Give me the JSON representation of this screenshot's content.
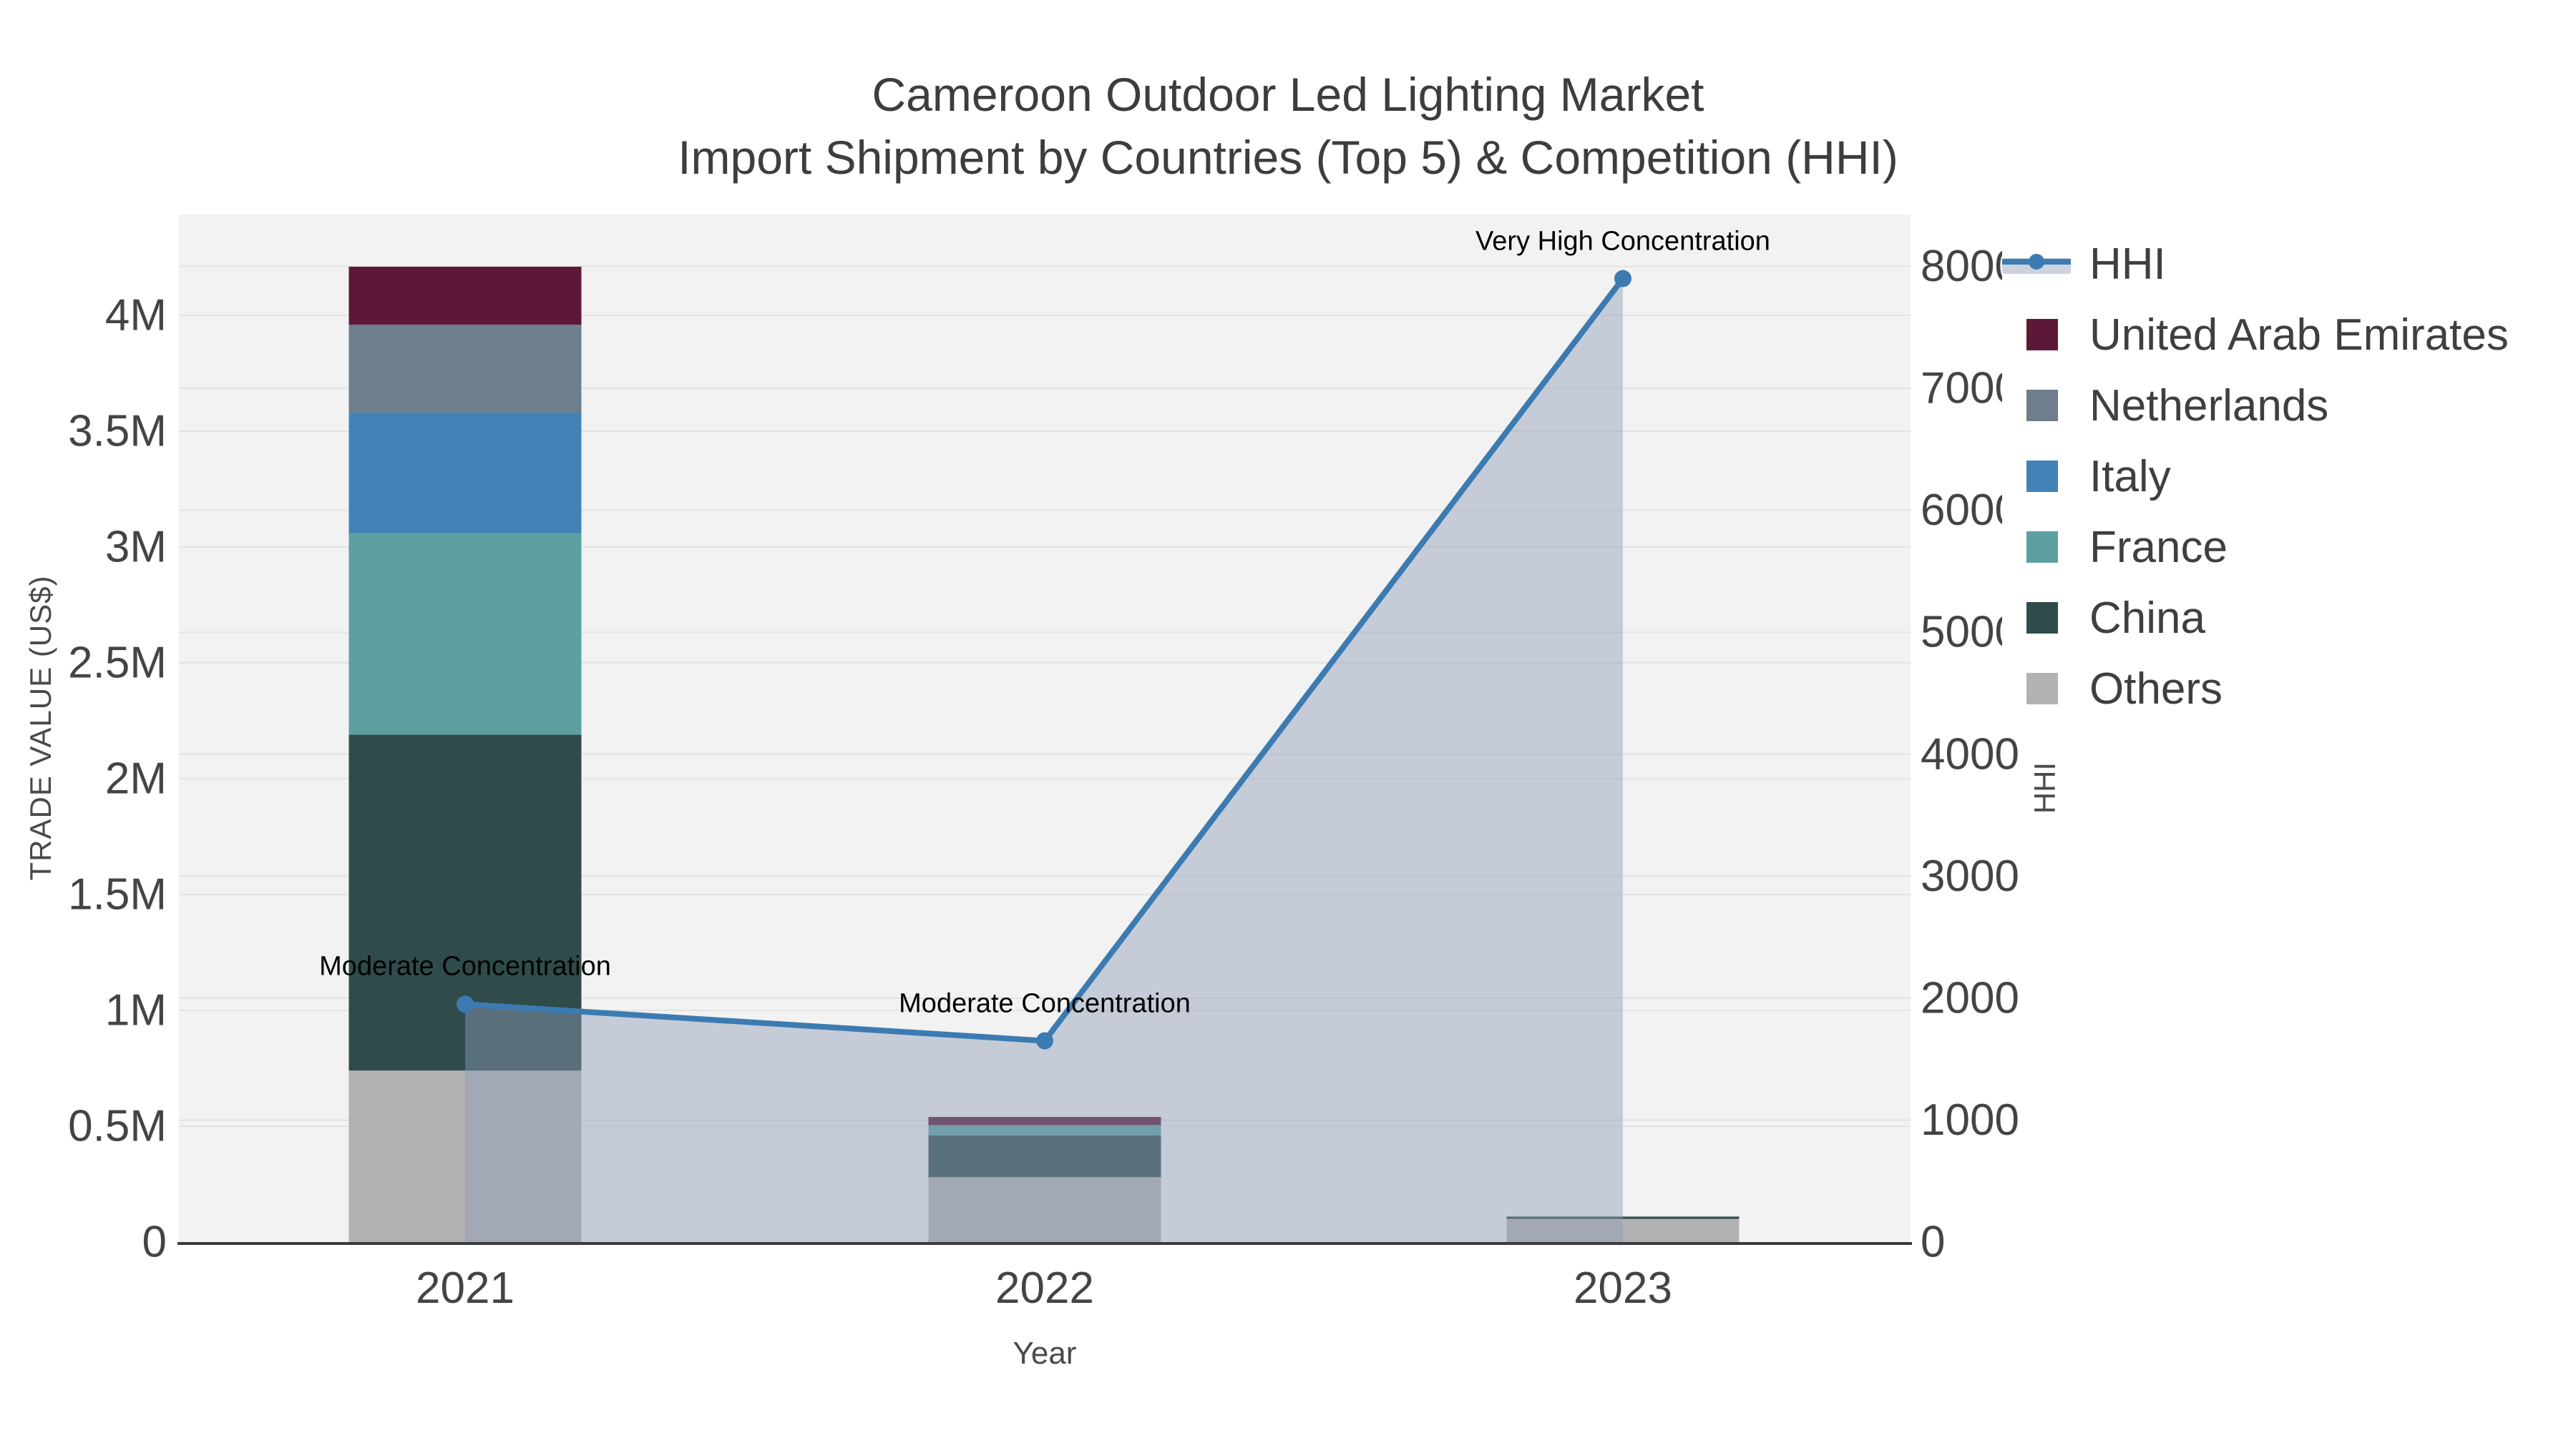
{
  "title": {
    "line1": "Cameroon Outdoor Led Lighting Market",
    "line2": "Import Shipment by Countries (Top 5) & Competition (HHI)"
  },
  "chart_data": {
    "type": "bar+line",
    "categories": [
      "2021",
      "2022",
      "2023"
    ],
    "bar_series": [
      {
        "name": "Others",
        "color": "#b2b2b2",
        "values": [
          740000,
          280000,
          100000
        ]
      },
      {
        "name": "China",
        "color": "#2f4c4b",
        "values": [
          1450000,
          180000,
          10000
        ]
      },
      {
        "name": "France",
        "color": "#5da0a2",
        "values": [
          870000,
          45000,
          0
        ]
      },
      {
        "name": "Italy",
        "color": "#4282b7",
        "values": [
          520000,
          0,
          0
        ]
      },
      {
        "name": "Netherlands",
        "color": "#6e7e8d",
        "values": [
          380000,
          0,
          0
        ]
      },
      {
        "name": "United Arab Emirates",
        "color": "#5d1737",
        "values": [
          250000,
          35000,
          0
        ]
      }
    ],
    "line_series": {
      "name": "HHI",
      "color": "#3c7bb1",
      "fill_color": "rgba(142,158,184,0.45)",
      "values": [
        1950,
        1650,
        7900
      ]
    },
    "left_axis": {
      "title": "TRADE VALUE (US$)",
      "ticks": [
        "0",
        "0.5M",
        "1M",
        "1.5M",
        "2M",
        "2.5M",
        "3M",
        "3.5M",
        "4M"
      ],
      "tick_step": 500000,
      "range": [
        0,
        4000000
      ]
    },
    "right_axis": {
      "title": "HHI",
      "ticks": [
        "0",
        "1000",
        "2000",
        "3000",
        "4000",
        "5000",
        "6000",
        "7000",
        "8000"
      ],
      "tick_step": 1000,
      "range": [
        0,
        8000
      ]
    },
    "x_axis": {
      "title": "Year",
      "labels": [
        "2021",
        "2022",
        "2023"
      ]
    },
    "annotations": [
      {
        "text": "Moderate Concentration",
        "x_index": 0
      },
      {
        "text": "Moderate Concentration",
        "x_index": 1
      },
      {
        "text": "Very High Concentration",
        "x_index": 2
      }
    ],
    "plot_bgcolor": "#f2f2f2",
    "gridline_color": "#e3e3e3",
    "axisline_color": "#3b3b3b",
    "legend_position": "right"
  },
  "legend": {
    "items": [
      {
        "label": "HHI",
        "type": "line",
        "color": "#3c7bb1",
        "fill_color": "#ccd3df"
      },
      {
        "label": "United Arab Emirates",
        "type": "square",
        "color": "#5d1737"
      },
      {
        "label": "Netherlands",
        "type": "square",
        "color": "#6e7e8d"
      },
      {
        "label": "Italy",
        "type": "square",
        "color": "#4282b7"
      },
      {
        "label": "France",
        "type": "square",
        "color": "#5da0a2"
      },
      {
        "label": "China",
        "type": "square",
        "color": "#2f4c4b"
      },
      {
        "label": "Others",
        "type": "square",
        "color": "#b2b2b2"
      }
    ]
  }
}
